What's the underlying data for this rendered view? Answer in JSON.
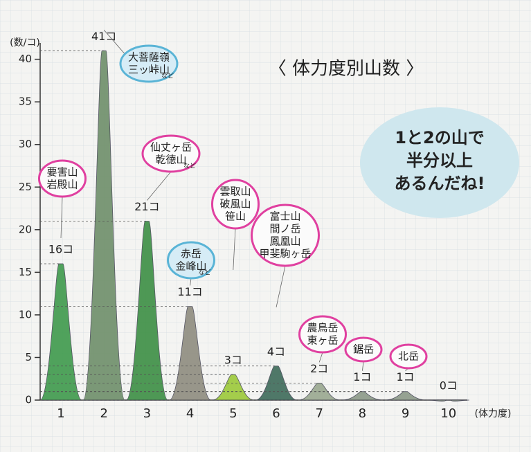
{
  "chart_data": {
    "type": "mountain",
    "title": "〈 体力度別山数 〉",
    "y_label": "(数/コ)",
    "x_label": "(体力度)",
    "categories": [
      "1",
      "2",
      "3",
      "4",
      "5",
      "6",
      "7",
      "8",
      "9",
      "10"
    ],
    "values": [
      16,
      41,
      21,
      11,
      3,
      4,
      2,
      1,
      1,
      0
    ],
    "value_labels": [
      "16コ",
      "41コ",
      "21コ",
      "11コ",
      "3コ",
      "4コ",
      "2コ",
      "1コ",
      "1コ",
      "0コ"
    ],
    "colors": [
      "#3f9a4c",
      "#6f8f6a",
      "#3d8f45",
      "#8f8c7f",
      "#9cc93a",
      "#3e6b5a",
      "#9aa890",
      "#8c9a88",
      "#8c9a88",
      "#8c9a88"
    ],
    "ylim": [
      0,
      42
    ],
    "yticks": [
      0,
      5,
      10,
      15,
      20,
      25,
      30,
      35,
      40
    ],
    "annotations": [
      {
        "text": [
          "要害山",
          "岩殿山"
        ]
      },
      {
        "text": [
          "大菩薩嶺",
          "三ッ峠山"
        ],
        "note": "など"
      },
      {
        "text": [
          "仙丈ヶ岳",
          "乾徳山"
        ],
        "note": "など"
      },
      {
        "text": [
          "赤岳",
          "金峰山"
        ],
        "note": "など"
      },
      {
        "text": [
          "雲取山",
          "破風山",
          "笹山"
        ]
      },
      {
        "text": [
          "富士山",
          "間ノ岳",
          "鳳凰山",
          "甲斐駒ヶ岳"
        ]
      },
      {
        "text": [
          "農鳥岳",
          "東ヶ岳"
        ]
      },
      {
        "text": [
          "鋸岳"
        ]
      },
      {
        "text": [
          "北岳"
        ]
      }
    ],
    "comment": [
      "1と2の山で",
      "半分以上",
      "あるんだね!"
    ]
  }
}
